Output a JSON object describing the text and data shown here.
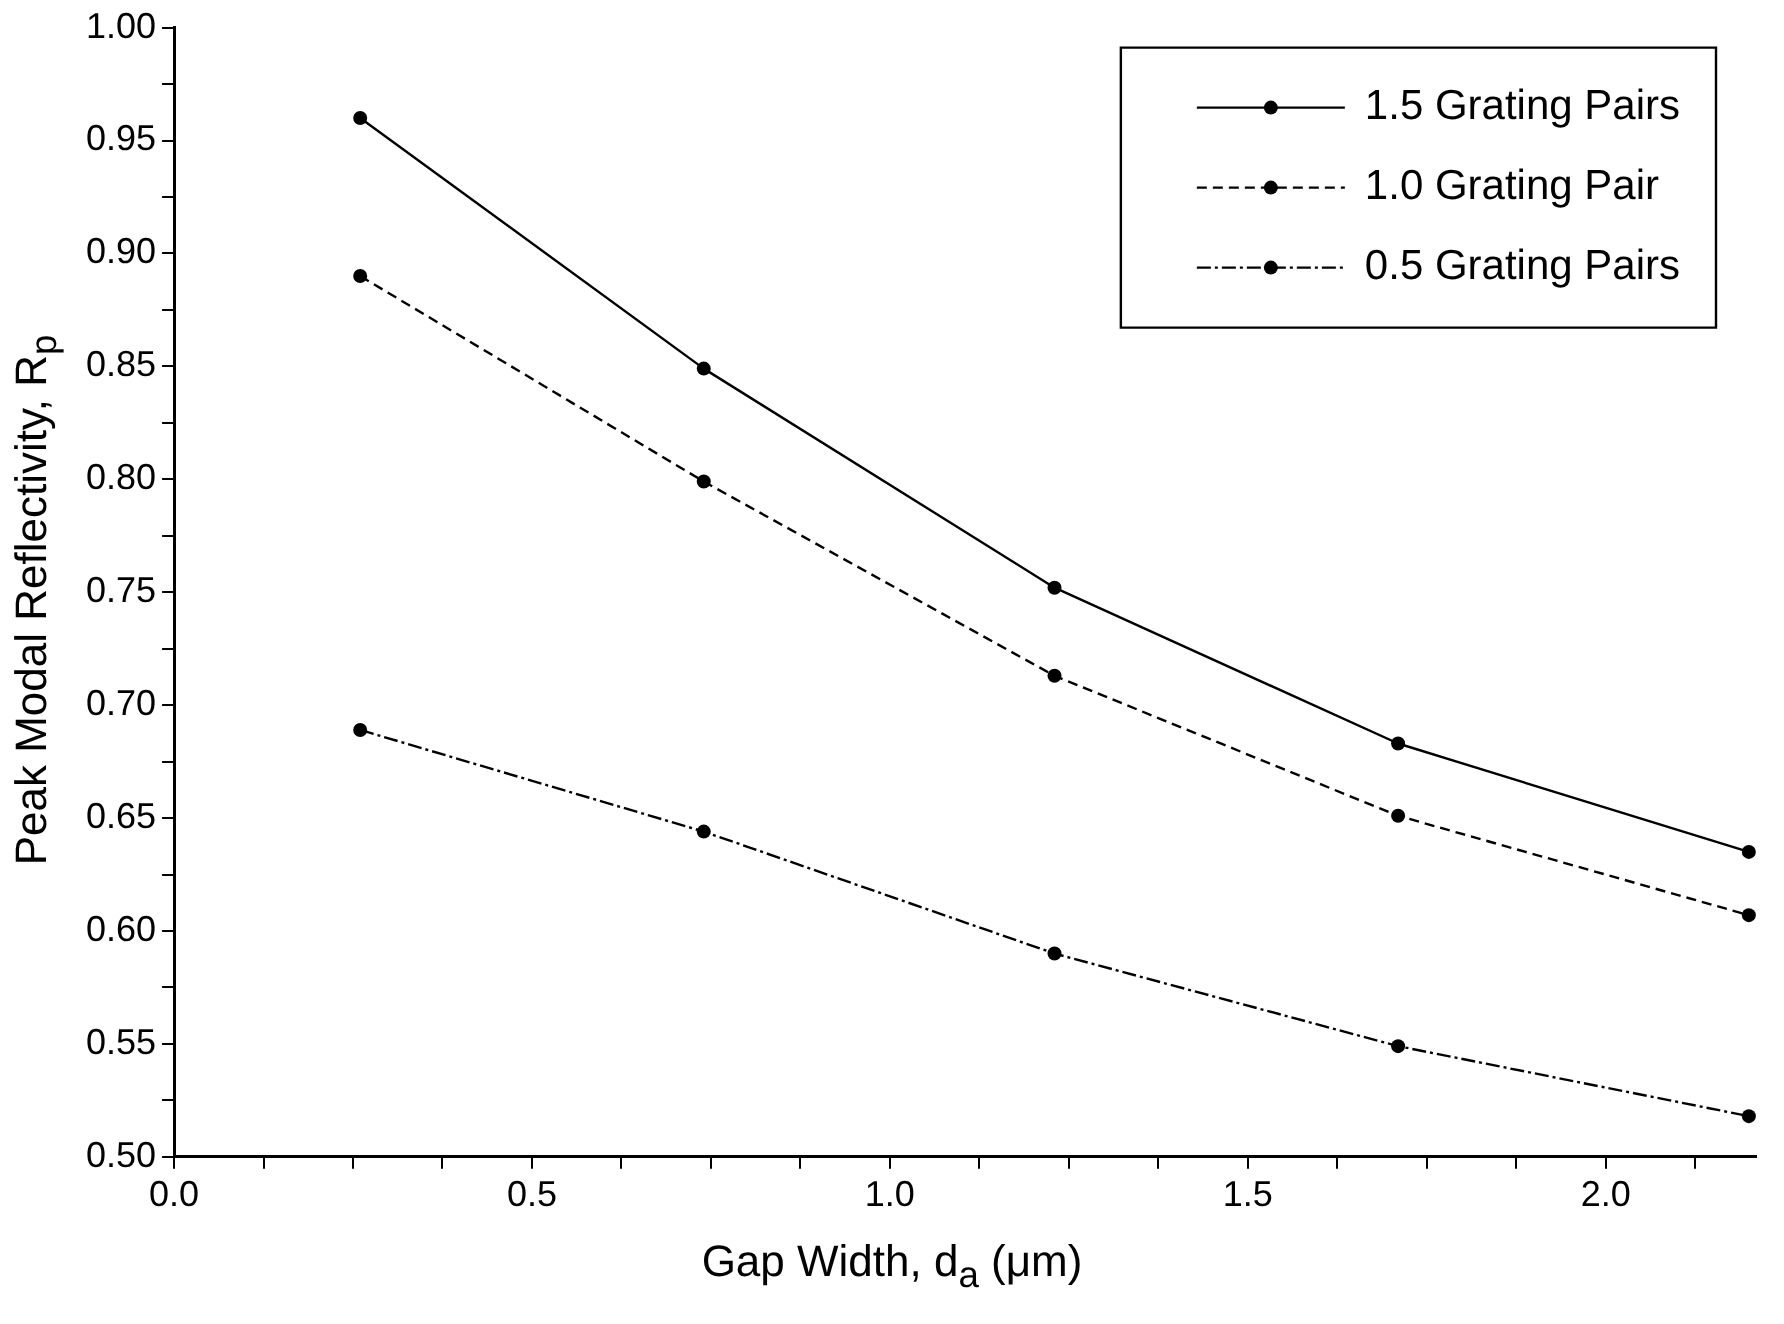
{
  "chart_data": {
    "type": "line",
    "xlabel": "Gap Width, d$_{a}$ (μm)",
    "ylabel": "Peak Modal Reflectivity, R$_{p}$",
    "x": [
      0.26,
      0.74,
      1.23,
      1.71,
      2.2
    ],
    "series": [
      {
        "name": "1.5 Grating Pairs",
        "color": "#000000",
        "line_style": "solid",
        "values": [
          0.96,
          0.849,
          0.752,
          0.683,
          0.635
        ]
      },
      {
        "name": "1.0 Grating Pair",
        "color": "#000000",
        "line_style": "dashed",
        "values": [
          0.89,
          0.799,
          0.713,
          0.651,
          0.607
        ]
      },
      {
        "name": "0.5 Grating Pairs",
        "color": "#000000",
        "line_style": "dashdot",
        "values": [
          0.689,
          0.644,
          0.59,
          0.549,
          0.518
        ]
      }
    ],
    "marker": "circle",
    "legend": "top right",
    "grid": false,
    "xlim": [
      0,
      2.21
    ],
    "xticks": [
      {
        "value": 0,
        "label": "0.0"
      },
      {
        "value": 0.125,
        "label": null
      },
      {
        "value": 0.25,
        "label": null
      },
      {
        "value": 0.375,
        "label": null
      },
      {
        "value": 0.5,
        "label": "0.5"
      },
      {
        "value": 0.625,
        "label": null
      },
      {
        "value": 0.75,
        "label": null
      },
      {
        "value": 0.875,
        "label": null
      },
      {
        "value": 1,
        "label": "1.0"
      },
      {
        "value": 1.125,
        "label": null
      },
      {
        "value": 1.25,
        "label": null
      },
      {
        "value": 1.375,
        "label": null
      },
      {
        "value": 1.5,
        "label": "1.5"
      },
      {
        "value": 1.625,
        "label": null
      },
      {
        "value": 1.75,
        "label": null
      },
      {
        "value": 1.875,
        "label": null
      },
      {
        "value": 2,
        "label": "2.0"
      },
      {
        "value": 2.125,
        "label": null
      }
    ],
    "ylim": [
      0.5,
      1
    ],
    "yticks": [
      {
        "value": 0.5,
        "label": "0.50"
      },
      {
        "value": 0.525,
        "label": null
      },
      {
        "value": 0.55,
        "label": "0.55"
      },
      {
        "value": 0.575,
        "label": null
      },
      {
        "value": 0.6,
        "label": "0.60"
      },
      {
        "value": 0.625,
        "label": null
      },
      {
        "value": 0.65,
        "label": "0.65"
      },
      {
        "value": 0.675,
        "label": null
      },
      {
        "value": 0.7,
        "label": "0.70"
      },
      {
        "value": 0.725,
        "label": null
      },
      {
        "value": 0.75,
        "label": "0.75"
      },
      {
        "value": 0.775,
        "label": null
      },
      {
        "value": 0.8,
        "label": "0.80"
      },
      {
        "value": 0.825,
        "label": null
      },
      {
        "value": 0.85,
        "label": "0.85"
      },
      {
        "value": 0.875,
        "label": null
      },
      {
        "value": 0.9,
        "label": "0.90"
      },
      {
        "value": 0.925,
        "label": null
      },
      {
        "value": 0.95,
        "label": "0.95"
      },
      {
        "value": 0.975,
        "label": null
      },
      {
        "value": 1,
        "label": "1.00"
      }
    ]
  }
}
